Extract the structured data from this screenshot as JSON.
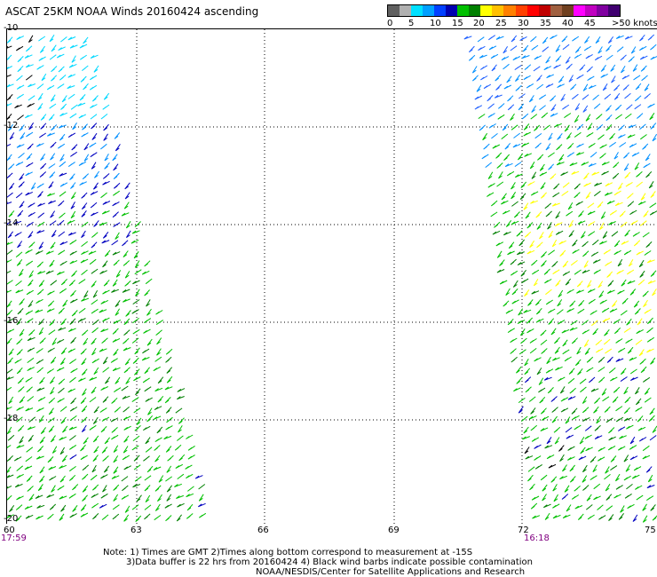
{
  "title": "ASCAT 25KM NOAA Winds 20160424 ascending",
  "colorbar": {
    "colors": [
      "#606060",
      "#b0b0b0",
      "#00e0ff",
      "#00a0ff",
      "#0040ff",
      "#0000b0",
      "#00c000",
      "#008000",
      "#ffff00",
      "#ffc000",
      "#ff8000",
      "#ff4000",
      "#ff0000",
      "#c00000",
      "#a06040",
      "#704020",
      "#ff00ff",
      "#c000c0",
      "#8000a0",
      "#400070"
    ],
    "labels": [
      "0",
      "5",
      "10",
      "15",
      "20",
      "25",
      "30",
      "35",
      "40",
      "45",
      ">50 knots"
    ]
  },
  "map": {
    "lat_labels": [
      "-10",
      "-12",
      "-14",
      "-16",
      "-18",
      "-20"
    ],
    "lon_labels": [
      "60",
      "63",
      "66",
      "69",
      "72",
      "75"
    ],
    "time_left": "17:59",
    "time_right": "16:18",
    "swaths": [
      {
        "name": "west-swath",
        "speed_profile": [
          "15",
          "10",
          "15",
          "20",
          "20",
          "20"
        ]
      },
      {
        "name": "east-swath",
        "speed_profile": [
          "10",
          "15",
          "20",
          "25",
          "20",
          "20"
        ]
      }
    ]
  },
  "notes": {
    "line1": "Note: 1) Times are GMT 2)Times along bottom correspond to measurement at -15S",
    "line2": "3)Data buffer is 22 hrs from 20160424 4) Black wind barbs indicate possible contamination",
    "line3": "NOAA/NESDIS/Center for Satellite Applications and Research"
  }
}
